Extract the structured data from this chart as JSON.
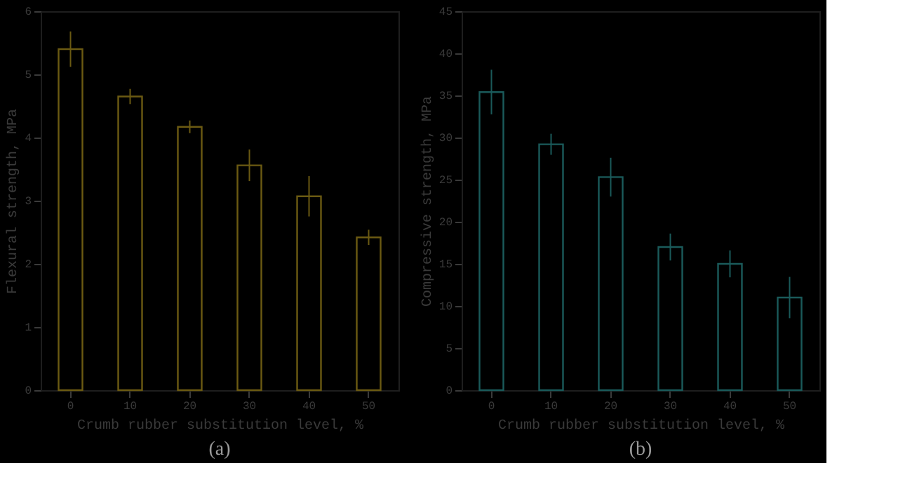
{
  "chart_data": [
    {
      "type": "bar",
      "title": "(a)",
      "xlabel": "Crumb rubber substitution level, %",
      "ylabel": "Flexural strength, MPa",
      "categories": [
        "0",
        "10",
        "20",
        "30",
        "40",
        "50"
      ],
      "values": [
        5.4,
        4.65,
        4.17,
        3.56,
        3.07,
        2.42
      ],
      "errors": [
        0.28,
        0.12,
        0.1,
        0.25,
        0.32,
        0.12
      ],
      "color": "#6b5a12",
      "ylim": [
        0,
        6
      ],
      "yticks": [
        0,
        1,
        2,
        3,
        4,
        5,
        6
      ],
      "grid": false
    },
    {
      "type": "bar",
      "title": "(b)",
      "xlabel": "Crumb rubber substitution level, %",
      "ylabel": "Compressive strength, MPa",
      "categories": [
        "0",
        "10",
        "20",
        "30",
        "40",
        "50"
      ],
      "values": [
        35.4,
        29.2,
        25.3,
        17.0,
        15.0,
        11.0
      ],
      "errors": [
        2.65,
        1.25,
        2.3,
        1.6,
        1.6,
        2.45
      ],
      "color": "#1a5a5a",
      "ylim": [
        0,
        45
      ],
      "yticks": [
        0,
        5,
        10,
        15,
        20,
        25,
        30,
        35,
        40,
        45
      ],
      "grid": false
    }
  ]
}
